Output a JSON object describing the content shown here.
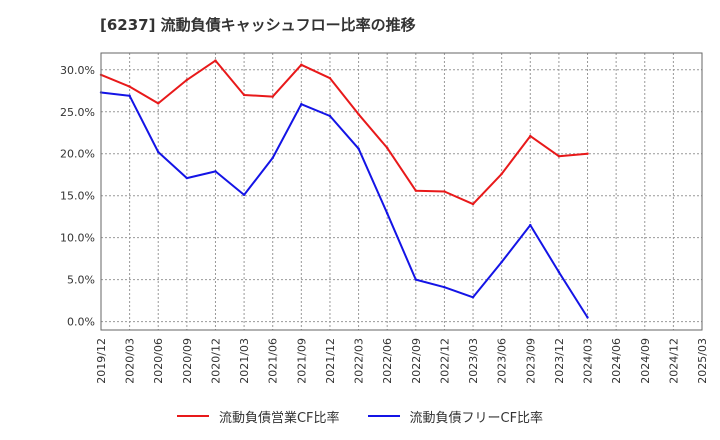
{
  "chart_data": {
    "type": "line",
    "title": "[6237]  流動負債キャッシュフロー比率の推移",
    "xlabel": "",
    "ylabel": "",
    "x": [
      "2019/12",
      "2020/03",
      "2020/06",
      "2020/09",
      "2020/12",
      "2021/03",
      "2021/06",
      "2021/09",
      "2021/12",
      "2022/03",
      "2022/06",
      "2022/09",
      "2022/12",
      "2023/03",
      "2023/06",
      "2023/09",
      "2023/12",
      "2024/03",
      "2024/06",
      "2024/09",
      "2024/12",
      "2025/03"
    ],
    "ylim": [
      -1,
      32
    ],
    "yticks": [
      0,
      5,
      10,
      15,
      20,
      25,
      30
    ],
    "ytick_labels": [
      "0.0%",
      "5.0%",
      "10.0%",
      "15.0%",
      "20.0%",
      "25.0%",
      "30.0%"
    ],
    "grid": true,
    "legend_position": "bottom",
    "series": [
      {
        "name": "流動負債営業CF比率",
        "color": "#e8191a",
        "values": [
          29.4,
          28.0,
          26.0,
          28.8,
          31.1,
          27.0,
          26.8,
          30.6,
          29.0,
          24.7,
          20.7,
          15.6,
          15.5,
          14.0,
          17.6,
          22.1,
          19.7,
          20.0,
          null,
          null,
          null,
          null
        ]
      },
      {
        "name": "流動負債フリーCF比率",
        "color": "#1414e6",
        "values": [
          27.3,
          26.9,
          20.2,
          17.1,
          17.9,
          15.1,
          19.5,
          25.9,
          24.5,
          20.6,
          12.9,
          5.0,
          4.1,
          2.9,
          7.1,
          11.5,
          5.9,
          0.5,
          null,
          null,
          null,
          null
        ]
      }
    ]
  }
}
